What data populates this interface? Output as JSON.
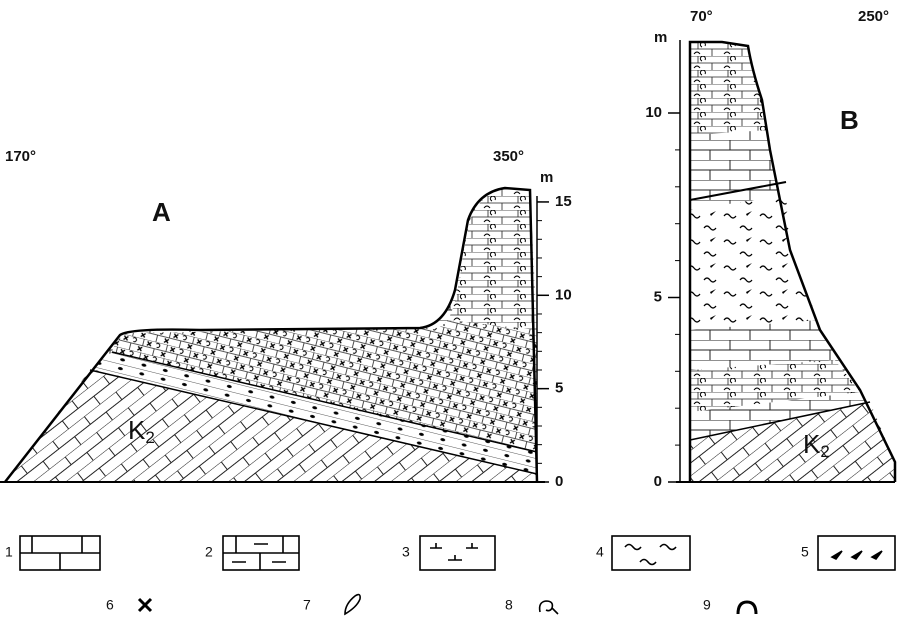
{
  "section_a": {
    "label": "A",
    "left_bearing": "170°",
    "right_bearing": "350°",
    "unit": "m",
    "ticks": [
      0,
      5,
      10,
      15
    ],
    "bedrock": {
      "symbol": "K",
      "subscript": "2"
    }
  },
  "section_b": {
    "label": "B",
    "left_bearing": "70°",
    "right_bearing": "250°",
    "unit": "m",
    "ticks": [
      0,
      5,
      10
    ],
    "bedrock": {
      "symbol": "K",
      "subscript": "2"
    }
  },
  "legend": [
    "1",
    "2",
    "3",
    "4",
    "5",
    "6",
    "7",
    "8",
    "9"
  ]
}
